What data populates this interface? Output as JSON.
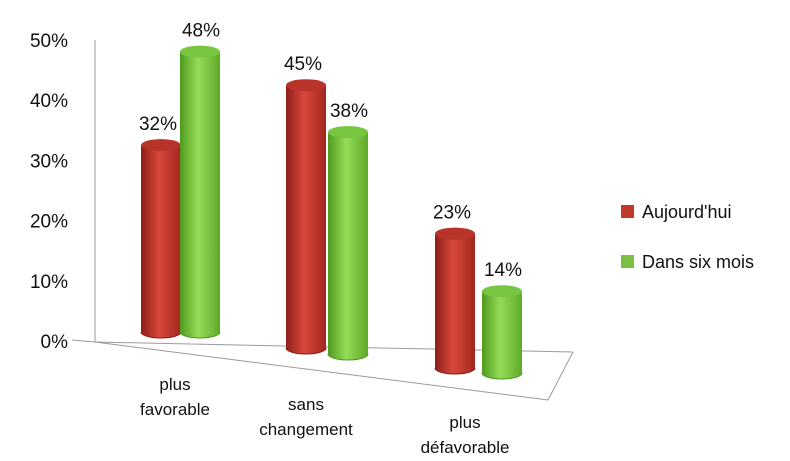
{
  "chart_data": {
    "type": "bar",
    "categories": [
      [
        "plus",
        "favorable"
      ],
      [
        "sans",
        "changement"
      ],
      [
        "plus",
        "défavorable"
      ]
    ],
    "series": [
      {
        "name": "Aujourd'hui",
        "color": "#c0392b",
        "values": [
          32,
          45,
          23
        ],
        "labels": [
          "32%",
          "45%",
          "23%"
        ]
      },
      {
        "name": "Dans six mois",
        "color": "#7ac143",
        "values": [
          48,
          38,
          14
        ],
        "labels": [
          "48%",
          "38%",
          "14%"
        ]
      }
    ],
    "yticks": [
      "0%",
      "10%",
      "20%",
      "30%",
      "40%",
      "50%"
    ],
    "ylim": [
      0,
      50
    ],
    "legend": "right",
    "grid": false
  }
}
